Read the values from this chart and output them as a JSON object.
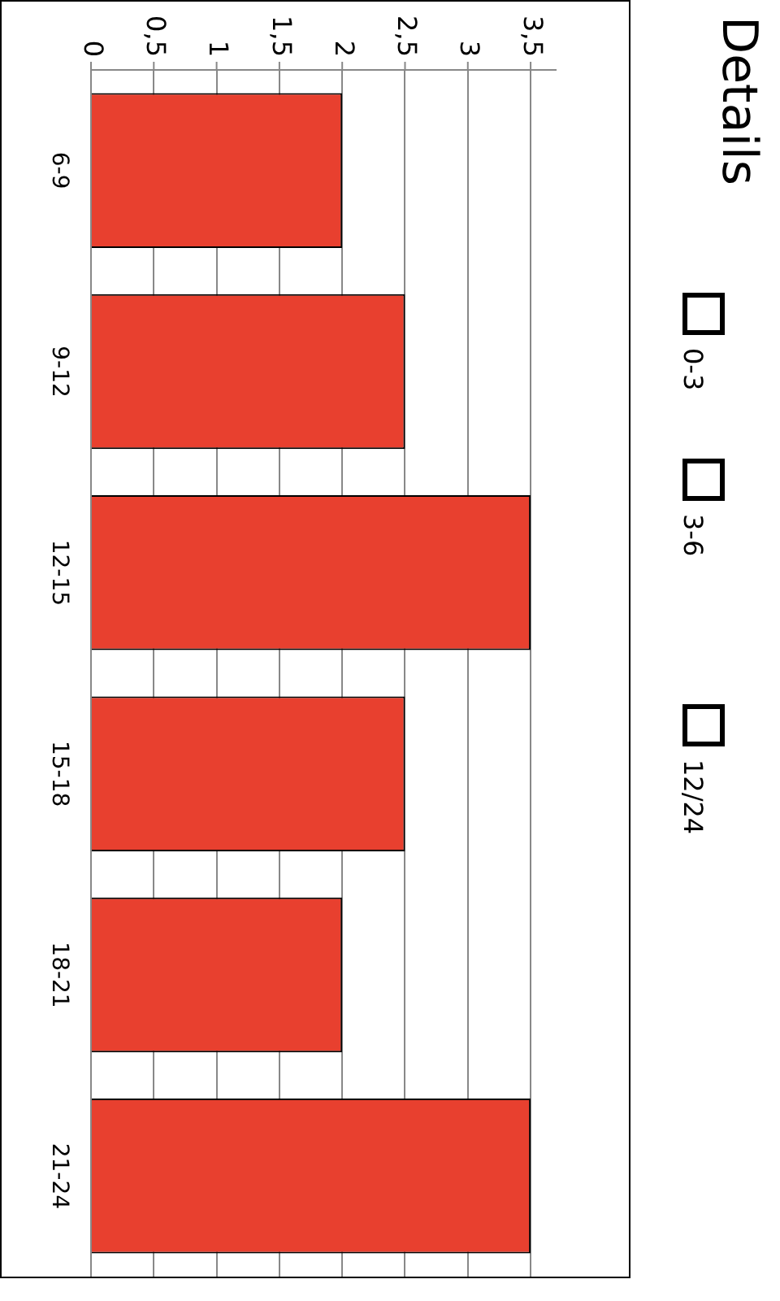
{
  "chart_data": {
    "type": "bar",
    "title": "Details",
    "orientation": "horizontal",
    "categories": [
      "6-9",
      "9-12",
      "12-15",
      "15-18",
      "18-21",
      "21-24"
    ],
    "values": [
      2,
      2.5,
      3.5,
      2.5,
      2,
      3.5
    ],
    "color": "#e8402f",
    "xlim": [
      0,
      3.7
    ],
    "xticks": [
      0,
      {
        "value": 0.5,
        "label": "0,5"
      },
      1,
      {
        "value": 1.5,
        "label": "1,5"
      },
      2,
      {
        "value": 2.5,
        "label": "2,5"
      },
      3,
      {
        "value": 3.5,
        "label": "3,5"
      }
    ],
    "grid": "x",
    "annotations": [
      "0-3",
      "3-6",
      "12/24"
    ]
  }
}
